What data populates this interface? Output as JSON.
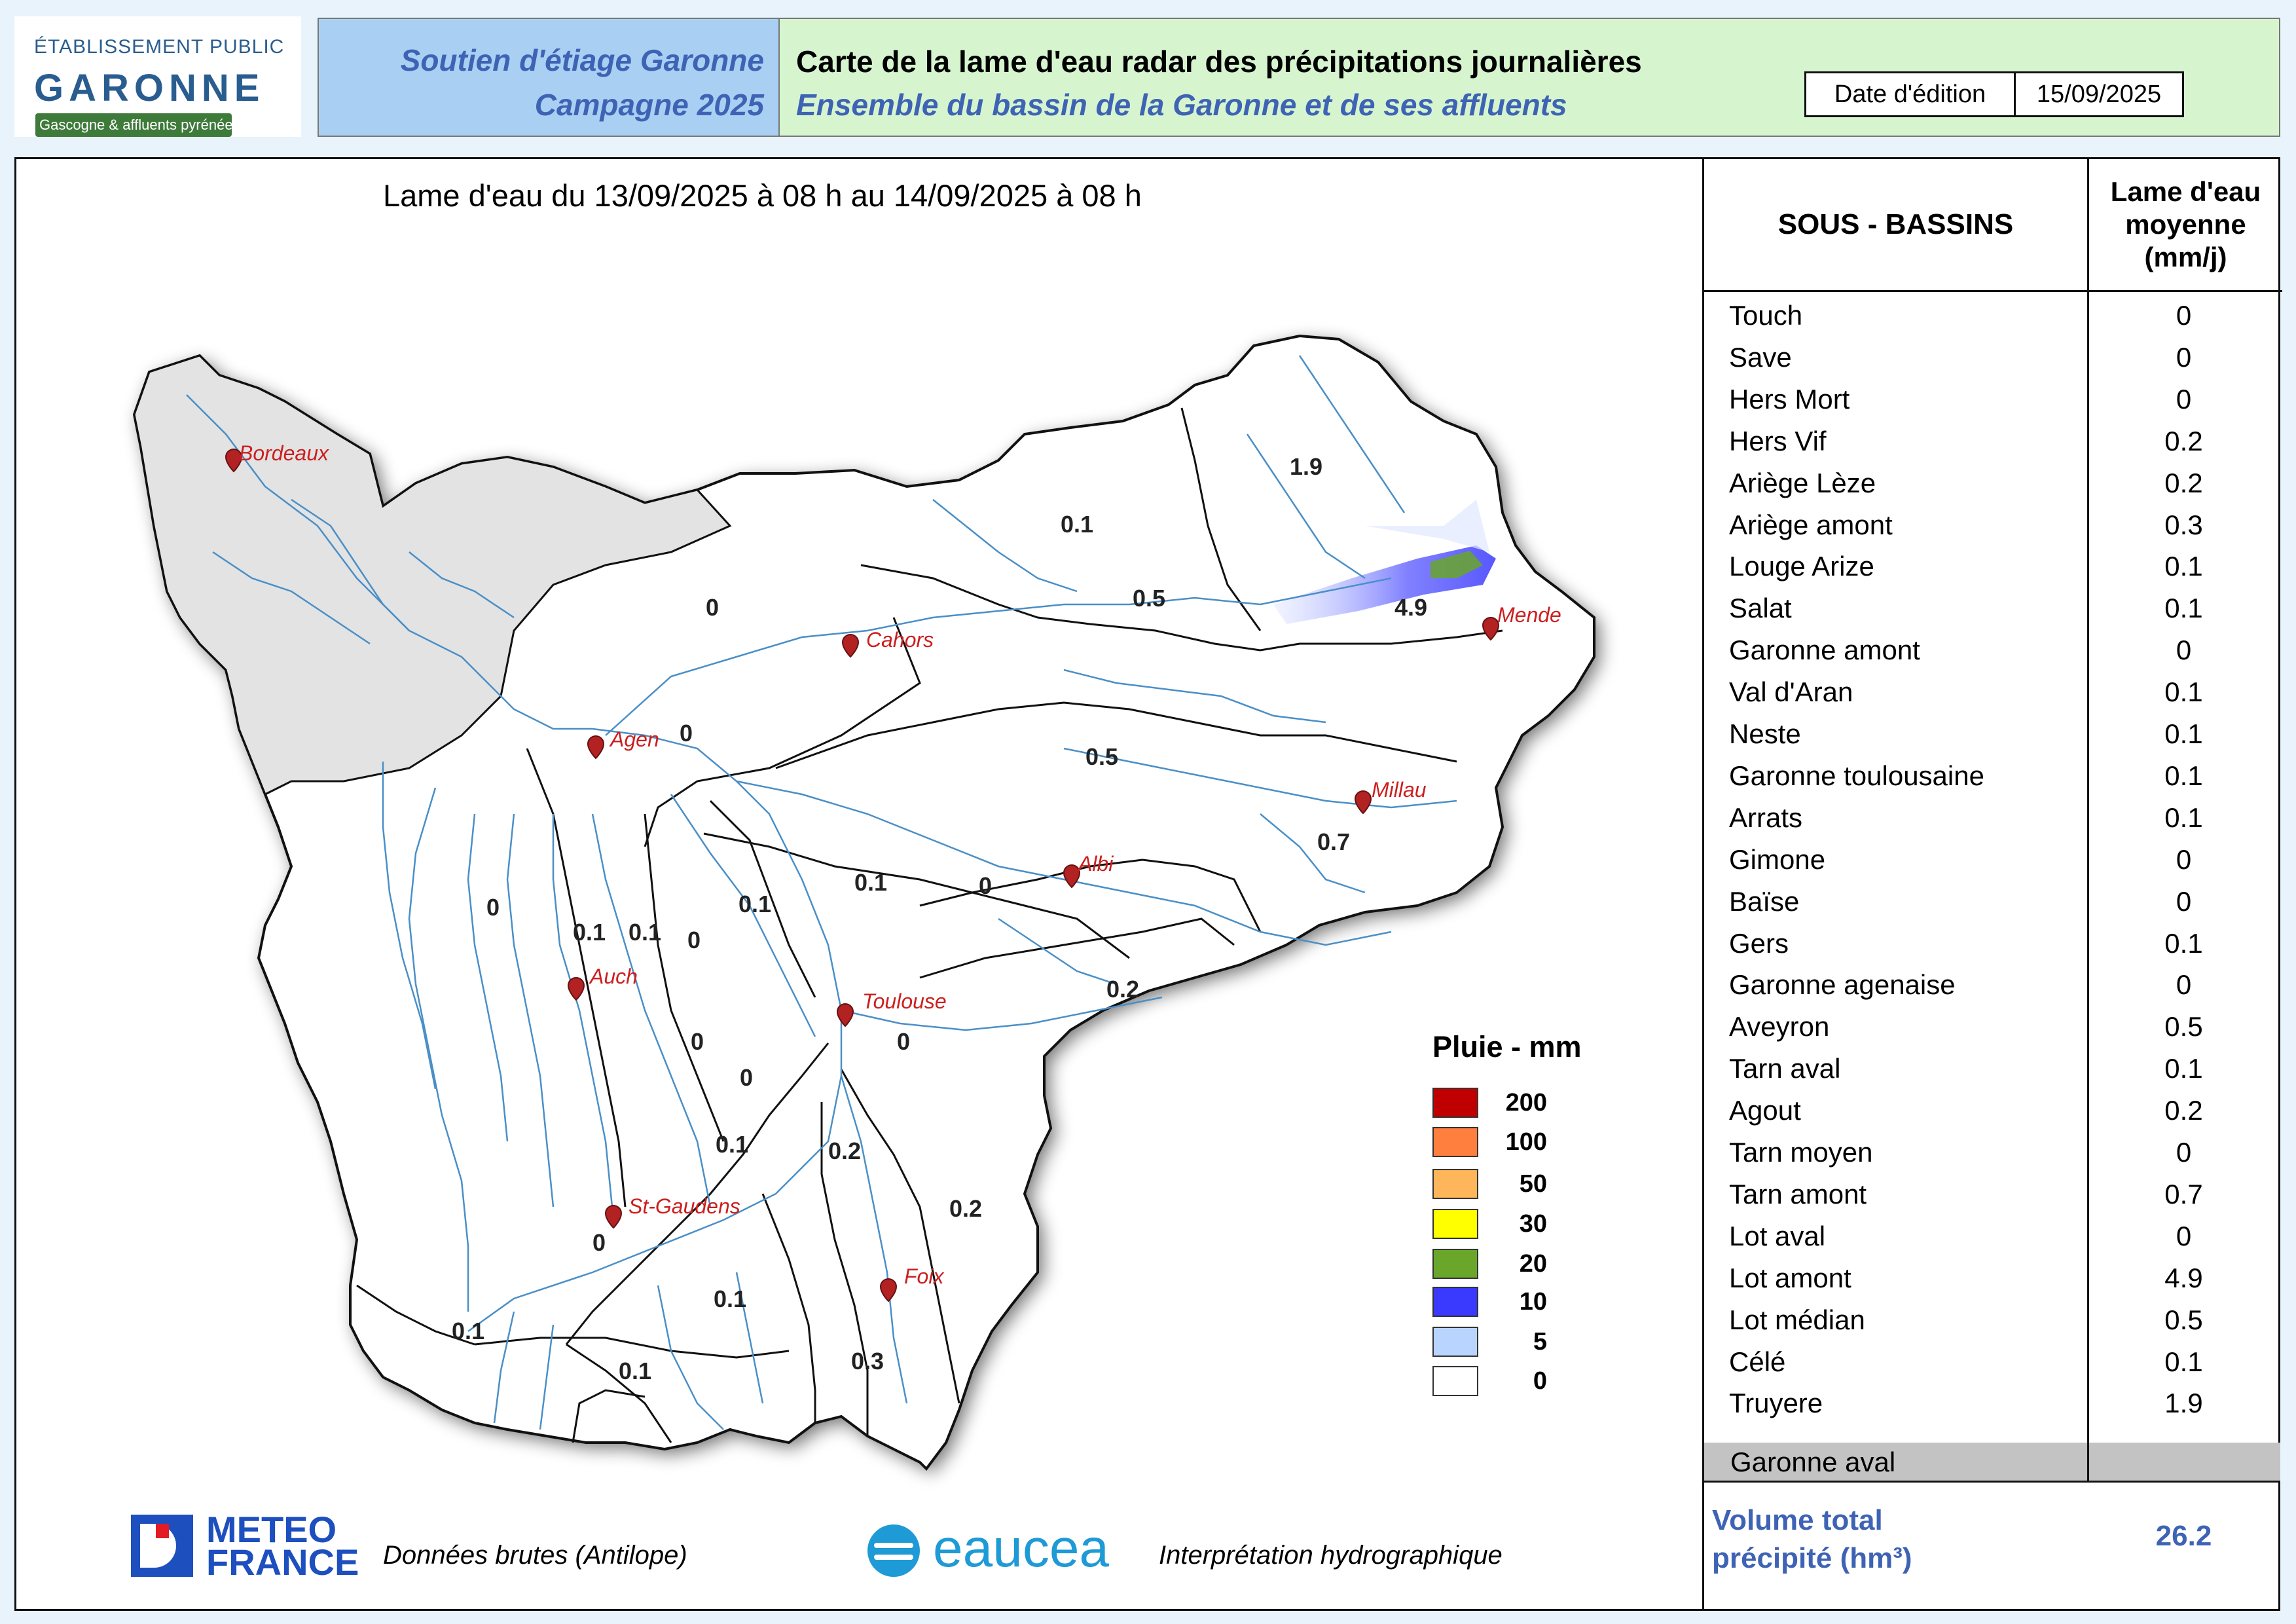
{
  "header": {
    "logo_top": "ÉTABLISSEMENT PUBLIC",
    "logo_main": "GARONNE",
    "logo_sub": "Gascogne & affluents pyrénéens",
    "left_line1": "Soutien d'étiage Garonne",
    "left_line2": "Campagne 2025",
    "title_line1": "Carte de la lame d'eau radar des précipitations journalières",
    "title_line2": "Ensemble du bassin de la Garonne et de ses affluents",
    "date_label": "Date d'édition",
    "date_value": "15/09/2025"
  },
  "map": {
    "title": "Lame d'eau du 13/09/2025  à 08 h au  14/09/2025   à 08 h",
    "cities": [
      {
        "name": "Bordeaux"
      },
      {
        "name": "Cahors"
      },
      {
        "name": "Agen"
      },
      {
        "name": "Mende"
      },
      {
        "name": "Millau"
      },
      {
        "name": "Albi"
      },
      {
        "name": "Auch"
      },
      {
        "name": "Toulouse"
      },
      {
        "name": "St-Gaudens"
      },
      {
        "name": "Foix"
      }
    ],
    "basin_values": [
      "1.9",
      "0.1",
      "0.5",
      "4.9",
      "0",
      "0",
      "0.5",
      "0.7",
      "0.1",
      "0",
      "0.1",
      "0",
      "0.1",
      "0.1",
      "0",
      "0.2",
      "0",
      "0",
      "0",
      "0.1",
      "0.2",
      "0.2",
      "0",
      "0.1",
      "0.1",
      "0.1",
      "0.3"
    ]
  },
  "legend": {
    "title": "Pluie - mm",
    "items": [
      {
        "value": "200",
        "color": "#c00000"
      },
      {
        "value": "100",
        "color": "#ff7f3f"
      },
      {
        "value": "50",
        "color": "#ffb55a"
      },
      {
        "value": "30",
        "color": "#ffff00"
      },
      {
        "value": "20",
        "color": "#6aa62a"
      },
      {
        "value": "10",
        "color": "#3a3aff"
      },
      {
        "value": "5",
        "color": "#b8d4ff"
      },
      {
        "value": "0",
        "color": "#ffffff"
      }
    ]
  },
  "table": {
    "col_subbasins": "SOUS - BASSINS",
    "col_lame": "Lame d'eau moyenne (mm/j)",
    "rows": [
      {
        "name": "Touch",
        "value": "0"
      },
      {
        "name": "Save",
        "value": "0"
      },
      {
        "name": "Hers Mort",
        "value": "0"
      },
      {
        "name": "Hers Vif",
        "value": "0.2"
      },
      {
        "name": "Ariège Lèze",
        "value": "0.2"
      },
      {
        "name": "Ariège amont",
        "value": "0.3"
      },
      {
        "name": "Louge Arize",
        "value": "0.1"
      },
      {
        "name": "Salat",
        "value": "0.1"
      },
      {
        "name": "Garonne amont",
        "value": "0"
      },
      {
        "name": "Val d'Aran",
        "value": "0.1"
      },
      {
        "name": "Neste",
        "value": "0.1"
      },
      {
        "name": "Garonne toulousaine",
        "value": "0.1"
      },
      {
        "name": "Arrats",
        "value": "0.1"
      },
      {
        "name": "Gimone",
        "value": "0"
      },
      {
        "name": "Baïse",
        "value": "0"
      },
      {
        "name": "Gers",
        "value": "0.1"
      },
      {
        "name": "Garonne agenaise",
        "value": "0"
      },
      {
        "name": "Aveyron",
        "value": "0.5"
      },
      {
        "name": "Tarn aval",
        "value": "0.1"
      },
      {
        "name": "Agout",
        "value": "0.2"
      },
      {
        "name": "Tarn moyen",
        "value": "0"
      },
      {
        "name": "Tarn amont",
        "value": "0.7"
      },
      {
        "name": "Lot aval",
        "value": "0"
      },
      {
        "name": "Lot amont",
        "value": "4.9"
      },
      {
        "name": "Lot médian",
        "value": "0.5"
      },
      {
        "name": "Célé",
        "value": "0.1"
      },
      {
        "name": "Truyere",
        "value": "1.9"
      }
    ],
    "last_row": "Garonne aval",
    "volume_label_1": "Volume total",
    "volume_label_2": "précipité (hm³)",
    "volume_value": "26.2"
  },
  "footer": {
    "meteo_line1": "METEO",
    "meteo_line2": "FRANCE",
    "meteo_caption": "Données brutes (Antilope)",
    "eaucea_name": "eaucea",
    "eaucea_caption": "Interprétation hydrographique"
  }
}
